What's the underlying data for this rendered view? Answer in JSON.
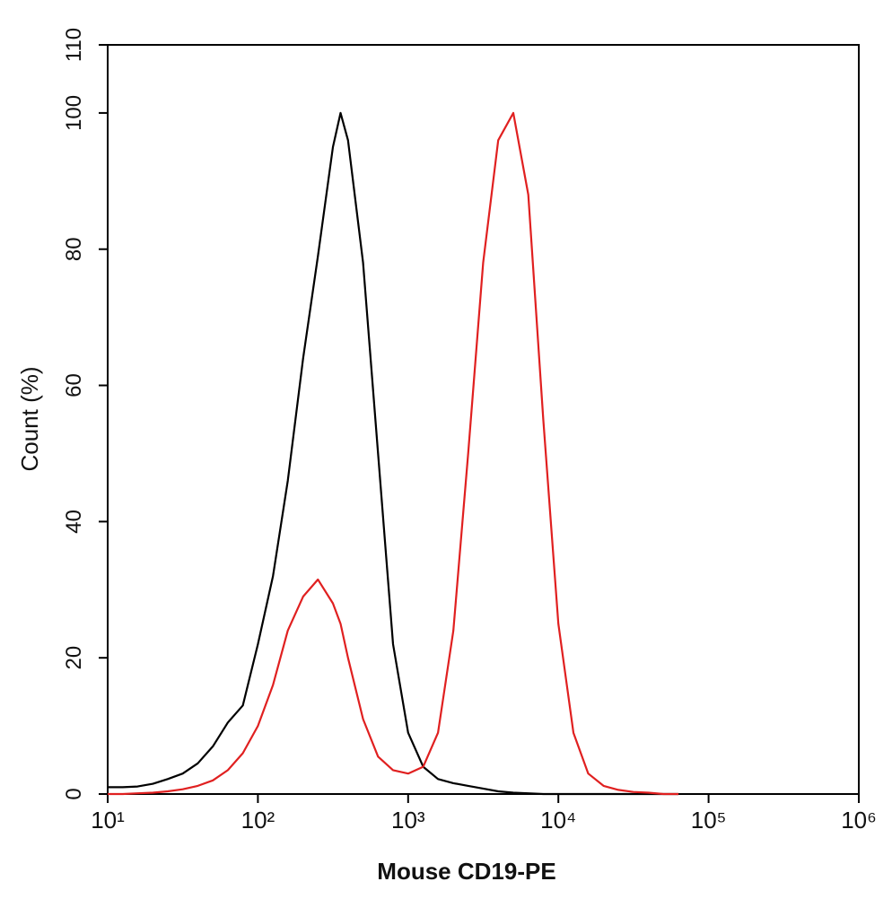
{
  "chart_data": {
    "type": "line",
    "x_label": "Mouse CD19-PE",
    "y_label": "Count  (%)",
    "x_log": true,
    "xlim": [
      10,
      1000000
    ],
    "xticks": [
      {
        "value": 10,
        "label": "10¹"
      },
      {
        "value": 100,
        "label": "10²"
      },
      {
        "value": 1000,
        "label": "10³"
      },
      {
        "value": 10000,
        "label": "10⁴"
      },
      {
        "value": 100000,
        "label": "10⁵"
      },
      {
        "value": 1000000,
        "label": "10⁶"
      }
    ],
    "ylim": [
      0,
      110
    ],
    "yticks": [
      0,
      20,
      40,
      60,
      80,
      100,
      110
    ],
    "x": [
      10,
      12.6,
      15.8,
      20,
      25.1,
      31.6,
      39.8,
      50.1,
      63.1,
      79.4,
      100,
      126,
      158,
      200,
      251,
      316,
      355,
      398,
      501,
      631,
      794,
      1000,
      1260,
      1580,
      2000,
      2510,
      3160,
      3980,
      5010,
      6310,
      7940,
      10000,
      12600,
      15800,
      20000,
      25100,
      31600,
      39800,
      50100,
      63100
    ],
    "series": [
      {
        "color": "#000000",
        "values": [
          1,
          1,
          1.1,
          1.5,
          2.2,
          3,
          4.5,
          7,
          10.5,
          13,
          22,
          32,
          46,
          64,
          79,
          95,
          100,
          96,
          78,
          50,
          22,
          9,
          4,
          2.2,
          1.6,
          1.2,
          0.8,
          0.4,
          0.2,
          0.1,
          0,
          0,
          0,
          0,
          0,
          0,
          0,
          0,
          0,
          0
        ]
      },
      {
        "color": "#e02020",
        "values": [
          0,
          0,
          0.1,
          0.2,
          0.4,
          0.7,
          1.2,
          2,
          3.5,
          6,
          10,
          16,
          24,
          29,
          31.5,
          28,
          25,
          20,
          11,
          5.5,
          3.5,
          3,
          4,
          9,
          24,
          50,
          78,
          96,
          100,
          88,
          55,
          25,
          9,
          3,
          1.2,
          0.6,
          0.3,
          0.2,
          0,
          0
        ]
      }
    ]
  }
}
